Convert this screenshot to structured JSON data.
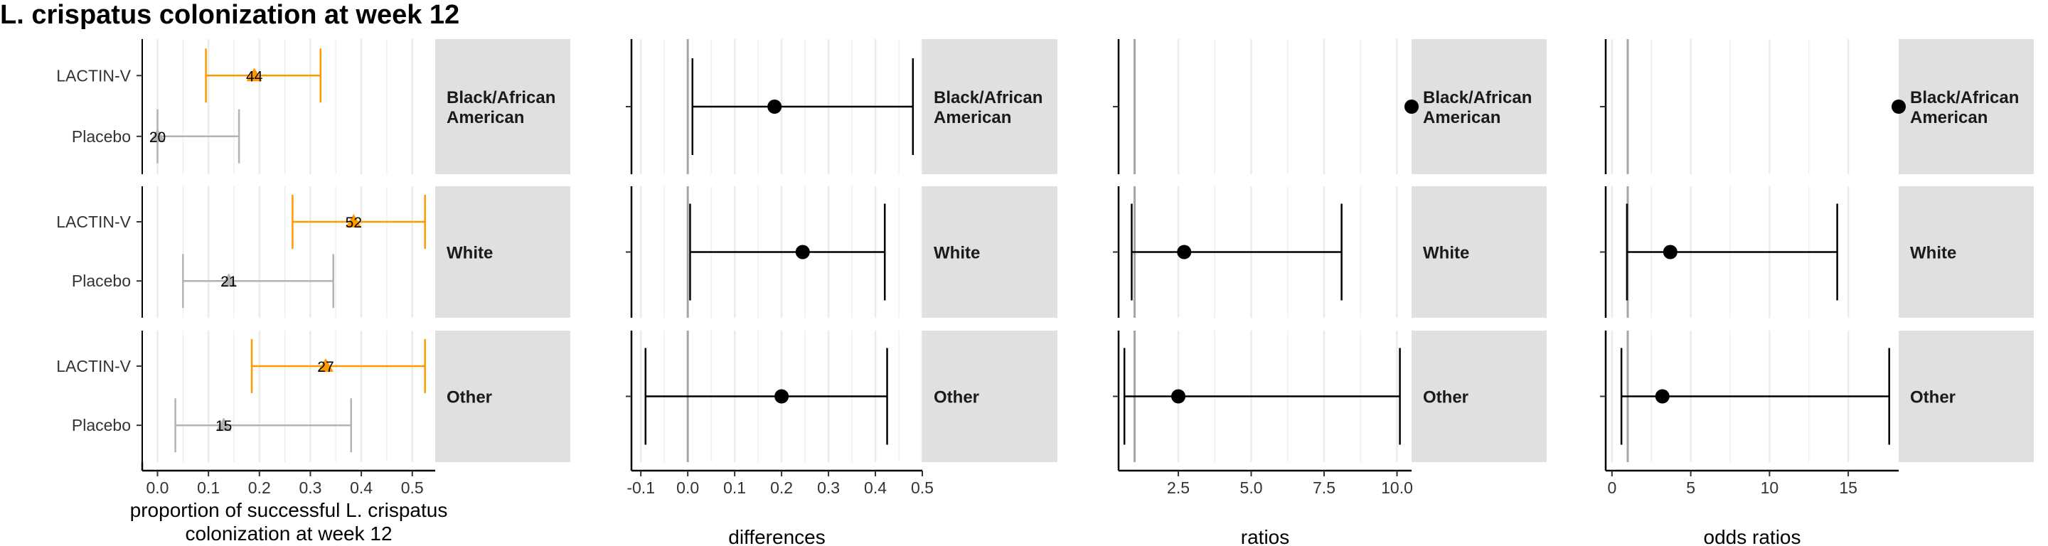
{
  "title": "L. crispatus colonization at week 12",
  "colors": {
    "treatment": "#FF9900",
    "placebo": "#B3B3B3",
    "strip_bg": "#E0E0E0",
    "grid": "#EBEBEB",
    "reference_line": "#A6A6A6",
    "estimate": "#000000"
  },
  "chart_data": [
    {
      "type": "forest",
      "panel": "proportions",
      "xlabel": "proportion of successful L. crispatus colonization at week 12",
      "xlim": [
        -0.03,
        0.545
      ],
      "xticks": [
        0.0,
        0.1,
        0.2,
        0.3,
        0.4,
        0.5
      ],
      "xtick_labels": [
        "0.0",
        "0.1",
        "0.2",
        "0.3",
        "0.4",
        "0.5"
      ],
      "grid": true,
      "rows": [
        {
          "strip": [
            "Black/African",
            "American"
          ],
          "groups": [
            {
              "label": "LACTIN-V",
              "color_key": "treatment",
              "estimate": 0.19,
              "lower": 0.095,
              "upper": 0.32,
              "n_label": "44"
            },
            {
              "label": "Placebo",
              "color_key": "placebo",
              "estimate": 0.0,
              "lower": 0.0,
              "upper": 0.16,
              "n_label": "20"
            }
          ]
        },
        {
          "strip": [
            "White"
          ],
          "groups": [
            {
              "label": "LACTIN-V",
              "color_key": "treatment",
              "estimate": 0.385,
              "lower": 0.265,
              "upper": 0.525,
              "n_label": "52"
            },
            {
              "label": "Placebo",
              "color_key": "placebo",
              "estimate": 0.14,
              "lower": 0.05,
              "upper": 0.345,
              "n_label": "21"
            }
          ]
        },
        {
          "strip": [
            "Other"
          ],
          "groups": [
            {
              "label": "LACTIN-V",
              "color_key": "treatment",
              "estimate": 0.33,
              "lower": 0.185,
              "upper": 0.525,
              "n_label": "27"
            },
            {
              "label": "Placebo",
              "color_key": "placebo",
              "estimate": 0.13,
              "lower": 0.035,
              "upper": 0.38,
              "n_label": "15"
            }
          ]
        }
      ]
    },
    {
      "type": "forest",
      "panel": "differences",
      "xlabel": "differences",
      "xlim": [
        -0.12,
        0.5
      ],
      "xticks": [
        -0.1,
        0.0,
        0.1,
        0.2,
        0.3,
        0.4,
        0.5
      ],
      "xtick_labels": [
        "-0.1",
        "0.0",
        "0.1",
        "0.2",
        "0.3",
        "0.4",
        "0.5"
      ],
      "reference": 0.0,
      "grid": true,
      "rows": [
        {
          "strip": [
            "Black/African",
            "American"
          ],
          "estimate": 0.185,
          "lower": 0.01,
          "upper": 0.48
        },
        {
          "strip": [
            "White"
          ],
          "estimate": 0.245,
          "lower": 0.005,
          "upper": 0.42
        },
        {
          "strip": [
            "Other"
          ],
          "estimate": 0.2,
          "lower": -0.09,
          "upper": 0.425
        }
      ]
    },
    {
      "type": "forest",
      "panel": "ratios",
      "xlabel": "ratios",
      "xlim": [
        0.45,
        10.5
      ],
      "xticks": [
        2.5,
        5.0,
        7.5,
        10.0
      ],
      "xtick_labels": [
        "2.5",
        "5.0",
        "7.5",
        "10.0"
      ],
      "reference": 1.0,
      "grid": true,
      "rows": [
        {
          "strip": [
            "Black/African",
            "American"
          ],
          "estimate": 10.5
        },
        {
          "strip": [
            "White"
          ],
          "estimate": 2.7,
          "lower": 0.9,
          "upper": 8.1
        },
        {
          "strip": [
            "Other"
          ],
          "estimate": 2.5,
          "lower": 0.65,
          "upper": 10.1
        }
      ]
    },
    {
      "type": "forest",
      "panel": "odds ratios",
      "xlabel": "odds ratios",
      "xlim": [
        -0.4,
        18.2
      ],
      "xticks": [
        0,
        5,
        10,
        15
      ],
      "xtick_labels": [
        "0",
        "5",
        "10",
        "15"
      ],
      "reference": 1.0,
      "grid": true,
      "rows": [
        {
          "strip": [
            "Black/African",
            "American"
          ],
          "estimate": 18.2
        },
        {
          "strip": [
            "White"
          ],
          "estimate": 3.7,
          "lower": 0.95,
          "upper": 14.3
        },
        {
          "strip": [
            "Other"
          ],
          "estimate": 3.2,
          "lower": 0.6,
          "upper": 17.6
        }
      ]
    }
  ]
}
